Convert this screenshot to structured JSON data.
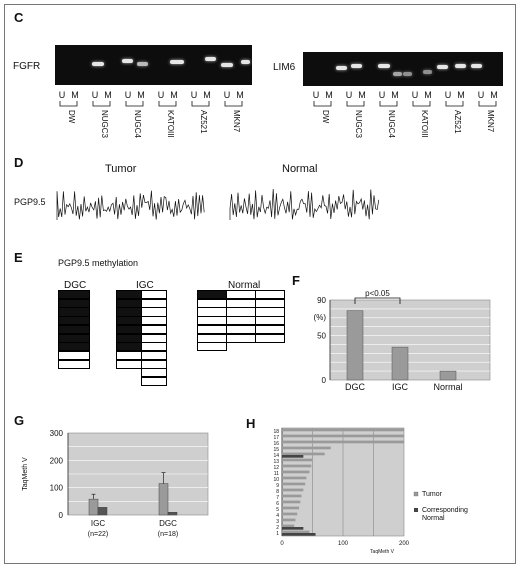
{
  "panels": {
    "C": {
      "label": "C",
      "left_gel_label": "FGFR",
      "right_gel_label": "LIM6",
      "lane_um": [
        "U",
        "M"
      ],
      "left_lanes": [
        "DW",
        "NUGC3",
        "NUGC4",
        "KATOIII",
        "AZ521",
        "MKN7"
      ],
      "right_lanes": [
        "DW",
        "NUGC3",
        "NUGC4",
        "KATOIII",
        "AZ521",
        "MKN7"
      ]
    },
    "D": {
      "label": "D",
      "gene": "PGP9.5",
      "tumor_label": "Tumor",
      "normal_label": "Normal"
    },
    "E": {
      "label": "E",
      "title": "PGP9.5 methylation",
      "groups": [
        {
          "name": "DGC",
          "columns": [
            {
              "methylated": 7,
              "unmethylated": 2
            }
          ]
        },
        {
          "name": "IGC",
          "columns": [
            {
              "methylated": 7,
              "unmethylated": 2
            },
            {
              "methylated": 0,
              "unmethylated": 11
            }
          ]
        },
        {
          "name": "Normal",
          "columns": [
            {
              "methylated": 1,
              "unmethylated": 6
            },
            {
              "methylated": 0,
              "unmethylated": 6
            },
            {
              "methylated": 0,
              "unmethylated": 6
            }
          ]
        }
      ]
    },
    "F": {
      "label": "F",
      "annotation": "p<0.05",
      "ylabel": "(%)",
      "ylim": [
        0,
        90
      ],
      "yticks": [
        "0",
        "50",
        "90"
      ]
    },
    "G": {
      "label": "G",
      "ylabel": "TaqMeth V",
      "ylim": [
        0,
        300
      ],
      "yticks": [
        "0",
        "100",
        "200",
        "300"
      ],
      "groups": [
        {
          "name": "IGC",
          "n": "(n=22)"
        },
        {
          "name": "DGC",
          "n": "(n=18)"
        }
      ]
    },
    "H": {
      "label": "H",
      "xlabel": "TaqMeth V",
      "xticks": [
        "0",
        "100",
        "200"
      ],
      "legend_tumor": "Tumor",
      "legend_normal_1": "Corresponding",
      "legend_normal_2": "Normal",
      "rows": [
        "18",
        "17",
        "16",
        "15",
        "14",
        "13",
        "12",
        "11",
        "10",
        "9",
        "8",
        "7",
        "6",
        "5",
        "4",
        "3",
        "2",
        "1"
      ]
    }
  },
  "chart_data": [
    {
      "type": "bar",
      "categories": [
        "DGC",
        "IGC",
        "Normal"
      ],
      "values": [
        78,
        37,
        10
      ],
      "ylabel": "(%)",
      "ylim": [
        0,
        90
      ],
      "grid": true
    },
    {
      "type": "bar",
      "categories": [
        "IGC",
        "DGC"
      ],
      "series": [
        {
          "values": [
            58,
            115
          ],
          "err": [
            18,
            40
          ]
        },
        {
          "values": [
            28,
            10
          ]
        }
      ],
      "ylabel": "TaqMeth V",
      "ylim": [
        0,
        300
      ],
      "grid": true
    },
    {
      "type": "bar",
      "orientation": "horizontal",
      "categories": [
        "18",
        "17",
        "16",
        "15",
        "14",
        "13",
        "12",
        "11",
        "10",
        "9",
        "8",
        "7",
        "6",
        "5",
        "4",
        "3",
        "2",
        "1"
      ],
      "series": [
        {
          "name": "Tumor",
          "values": [
            200,
            200,
            200,
            80,
            70,
            50,
            48,
            45,
            40,
            38,
            35,
            32,
            30,
            28,
            25,
            22,
            20,
            45
          ]
        },
        {
          "name": "Corresponding Normal",
          "values": [
            0,
            0,
            0,
            0,
            35,
            0,
            0,
            0,
            0,
            0,
            0,
            0,
            0,
            0,
            0,
            0,
            35,
            55
          ]
        }
      ],
      "xlabel": "TaqMeth V",
      "xlim": [
        0,
        200
      ]
    }
  ]
}
